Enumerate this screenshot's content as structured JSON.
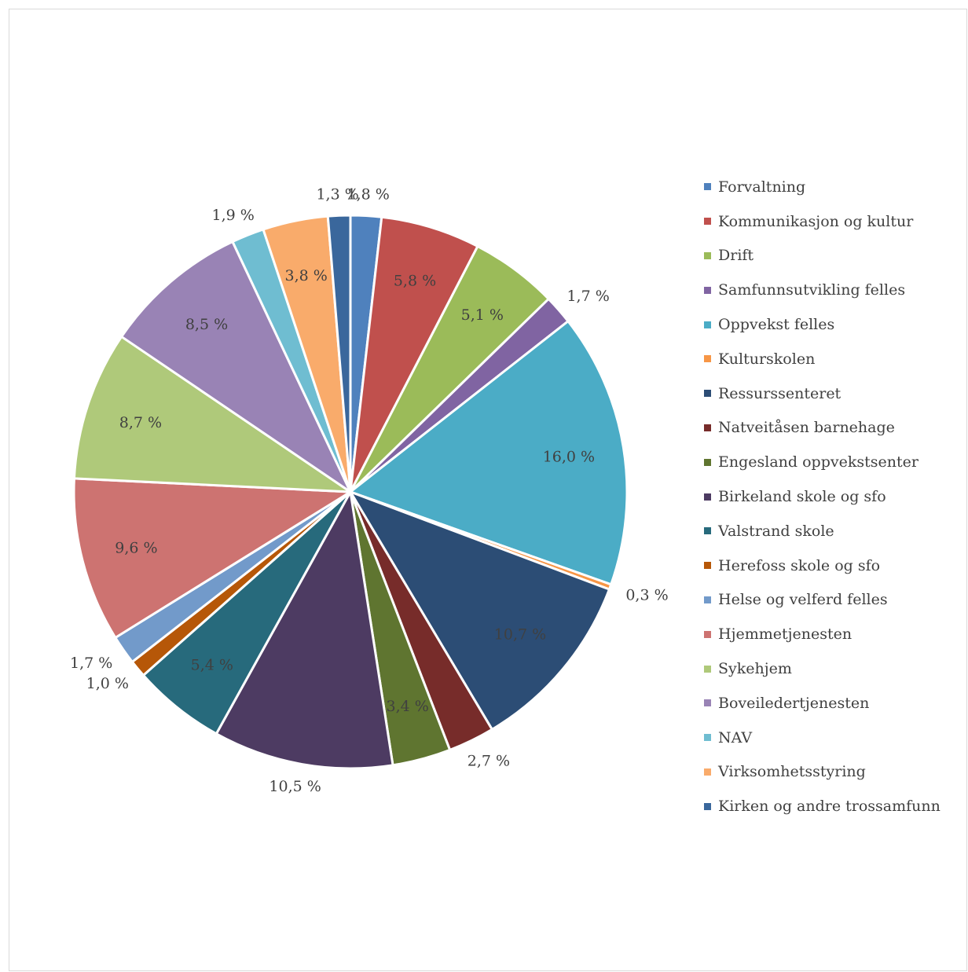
{
  "chart_data": {
    "type": "pie",
    "title": "",
    "legend_position": "right",
    "slices": [
      {
        "name": "Forvaltning",
        "value": 1.8,
        "label": "1,8 %",
        "color": "#4F81BD",
        "label_side": "outside"
      },
      {
        "name": "Kommunikasjon og kultur",
        "value": 5.8,
        "label": "5,8 %",
        "color": "#C0504D",
        "label_side": "inside"
      },
      {
        "name": "Drift",
        "value": 5.1,
        "label": "5,1 %",
        "color": "#9BBB59",
        "label_side": "inside"
      },
      {
        "name": "Samfunnsutvikling felles",
        "value": 1.7,
        "label": "1,7 %",
        "color": "#8064A2",
        "label_side": "outside"
      },
      {
        "name": "Oppvekst felles",
        "value": 16.0,
        "label": "16,0 %",
        "color": "#4BACC6",
        "label_side": "inside"
      },
      {
        "name": "Kulturskolen",
        "value": 0.3,
        "label": "0,3 %",
        "color": "#F79646",
        "label_side": "outside"
      },
      {
        "name": "Ressurssenteret",
        "value": 10.7,
        "label": "10,7 %",
        "color": "#2C4D75",
        "label_side": "inside"
      },
      {
        "name": "Natveitåsen barnehage",
        "value": 2.7,
        "label": "2,7 %",
        "color": "#772C2A",
        "label_side": "outside"
      },
      {
        "name": "Engesland oppvekstsenter",
        "value": 3.4,
        "label": "3,4 %",
        "color": "#5F7530",
        "label_side": "inside"
      },
      {
        "name": "Birkeland skole og sfo",
        "value": 10.5,
        "label": "10,5 %",
        "color": "#4D3B62",
        "label_side": "outside"
      },
      {
        "name": "Valstrand skole",
        "value": 5.4,
        "label": "5,4 %",
        "color": "#276A7C",
        "label_side": "inside"
      },
      {
        "name": "Herefoss skole og sfo",
        "value": 1.0,
        "label": "1,0 %",
        "color": "#B65708",
        "label_side": "outside"
      },
      {
        "name": "Helse og velferd felles",
        "value": 1.7,
        "label": "1,7 %",
        "color": "#729ACA",
        "label_side": "outside"
      },
      {
        "name": "Hjemmetjenesten",
        "value": 9.6,
        "label": "9,6 %",
        "color": "#CD7371",
        "label_side": "inside"
      },
      {
        "name": "Sykehjem",
        "value": 8.7,
        "label": "8,7 %",
        "color": "#AFC97A",
        "label_side": "inside"
      },
      {
        "name": "Boveiledertjenesten",
        "value": 8.5,
        "label": "8,5 %",
        "color": "#9983B5",
        "label_side": "inside"
      },
      {
        "name": "NAV",
        "value": 1.9,
        "label": "1,9 %",
        "color": "#6FBDD1",
        "label_side": "outside"
      },
      {
        "name": "Virksomhetsstyring",
        "value": 3.8,
        "label": "3,8 %",
        "color": "#F9AB6B",
        "label_side": "inside"
      },
      {
        "name": "Kirken og andre trossamfunn",
        "value": 1.3,
        "label": "1,3 %",
        "color": "#3A679C",
        "label_side": "outside"
      }
    ]
  }
}
